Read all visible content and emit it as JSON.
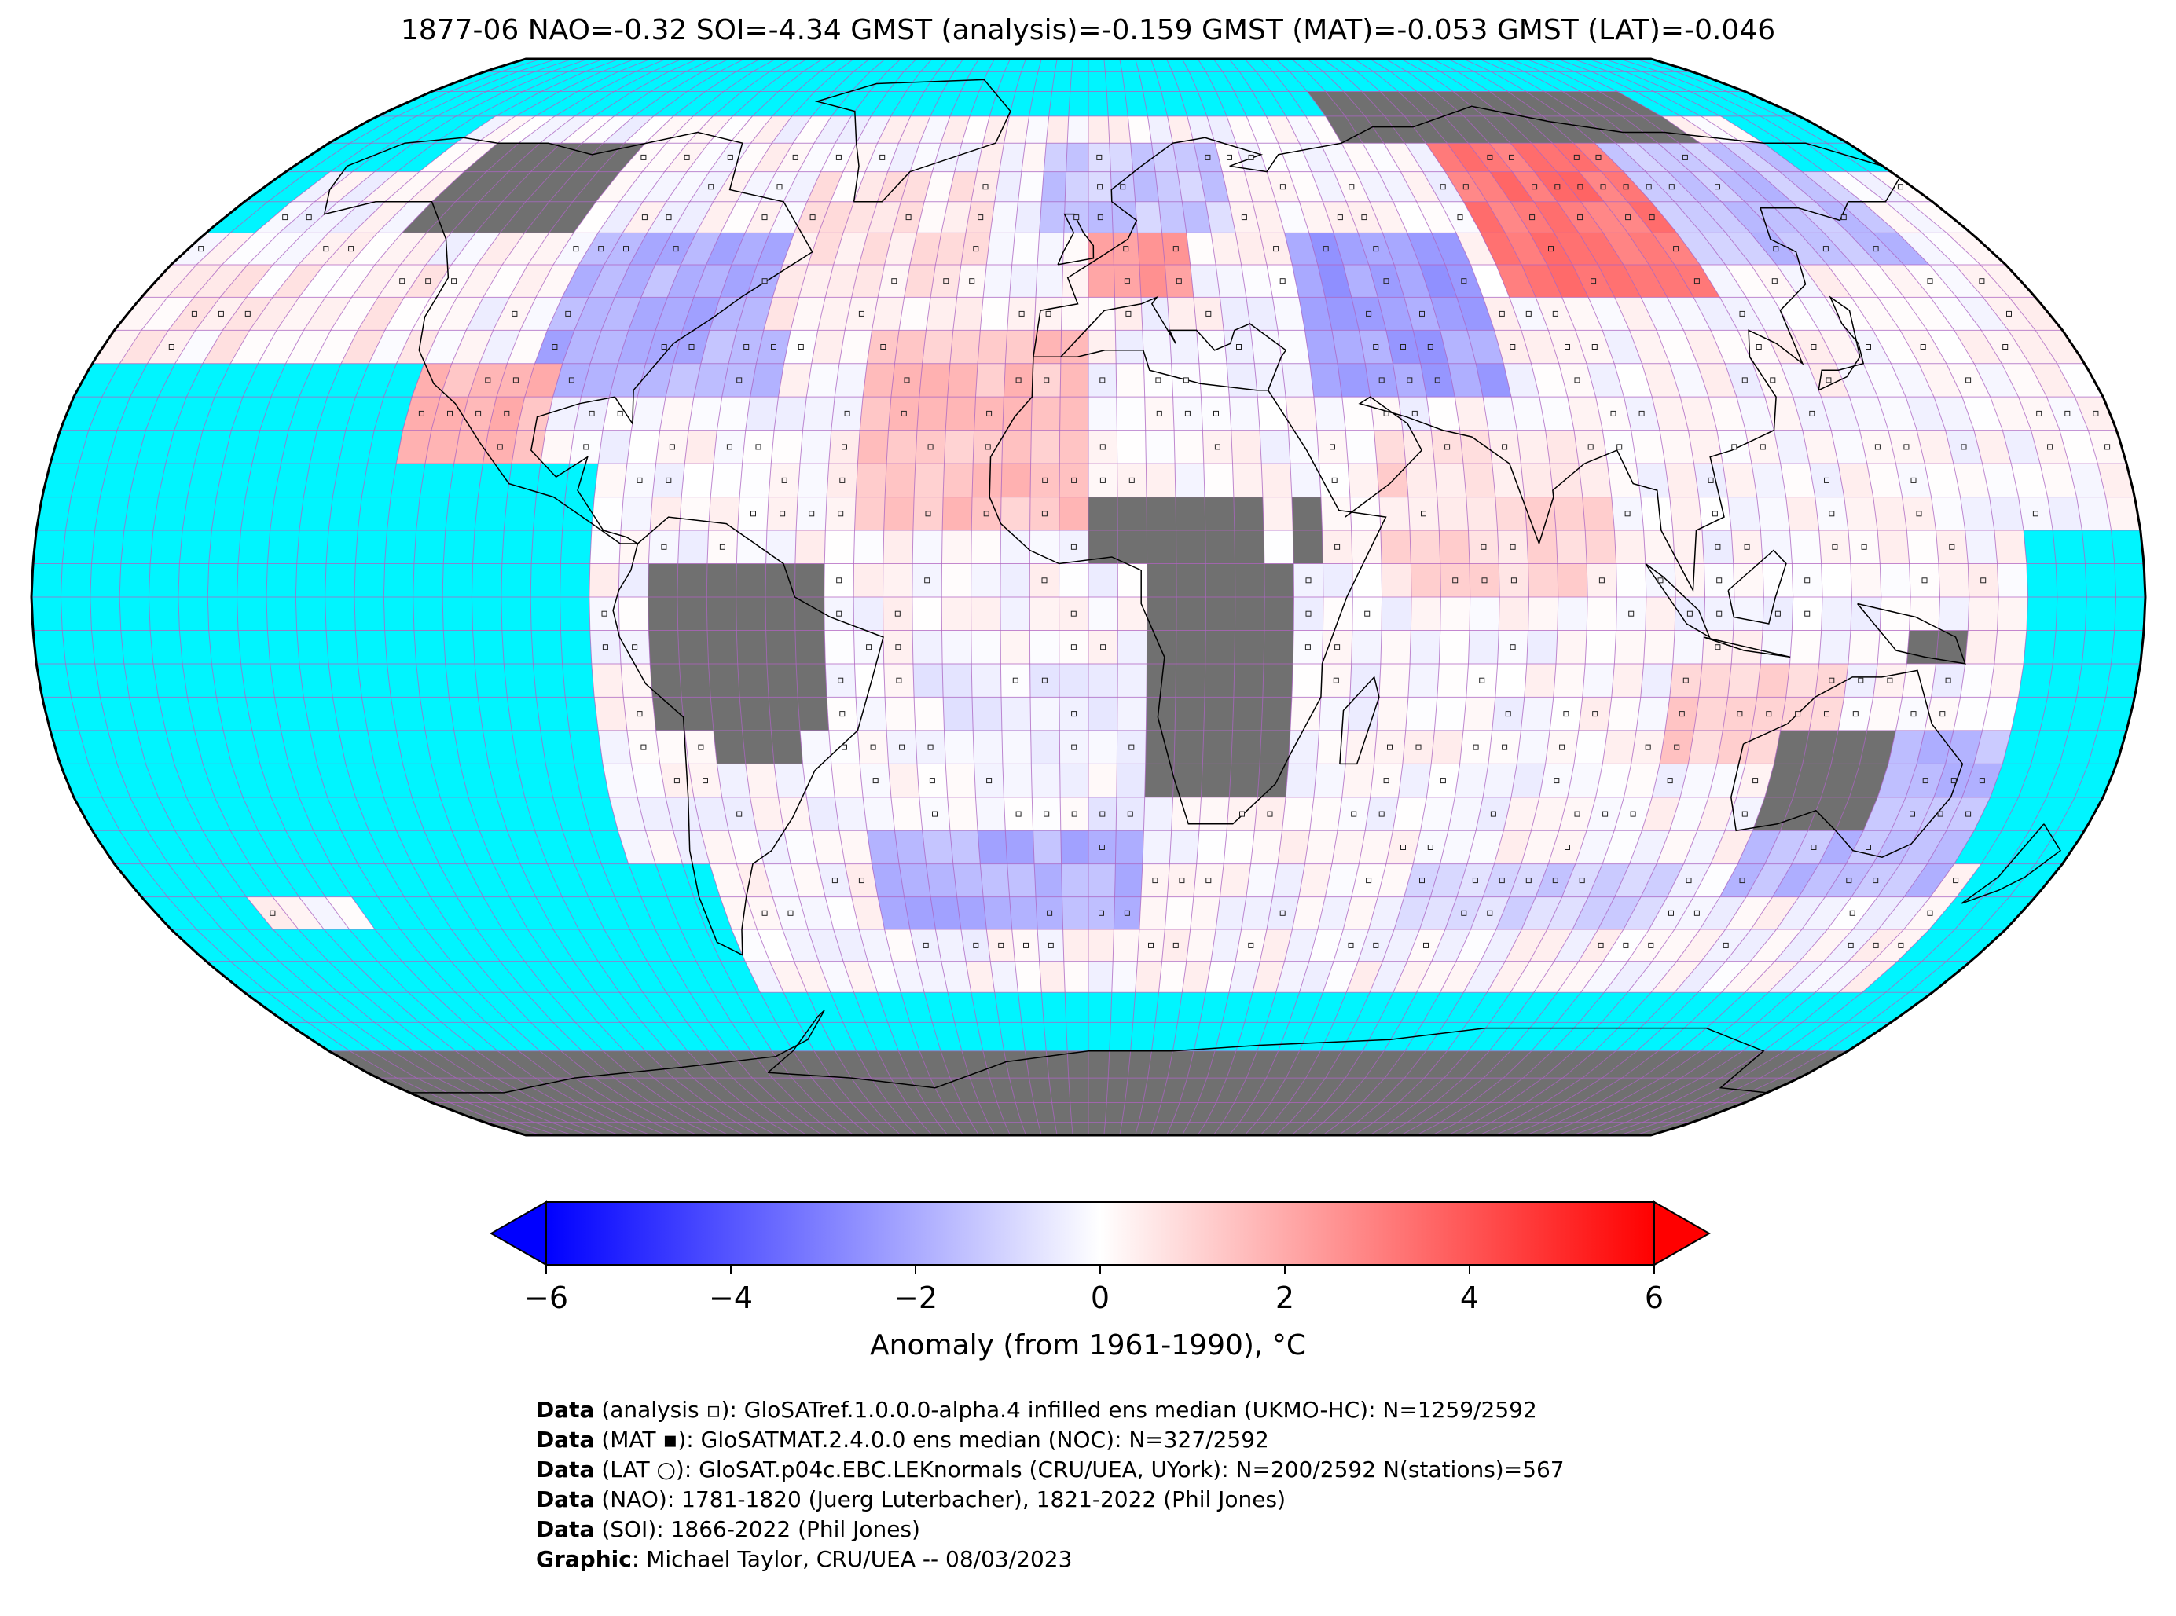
{
  "title": "1877-06 NAO=-0.32 SOI=-4.34 GMST (analysis)=-0.159 GMST (MAT)=-0.053 GMST (LAT)=-0.046",
  "map": {
    "projection": "robinson",
    "grid_resolution_deg": 5,
    "ocean_missing_color": "#00f5ff",
    "land_missing_color": "#707070",
    "grid_line_color": "#b062c0",
    "coast_color": "#000000"
  },
  "colorbar": {
    "min": -6,
    "max": 6,
    "ticks": [
      "−6",
      "−4",
      "−2",
      "0",
      "2",
      "4",
      "6"
    ],
    "tick_values": [
      -6,
      -4,
      -2,
      0,
      2,
      4,
      6
    ],
    "colormap": [
      "#0000ff",
      "#ffffff",
      "#ff0000"
    ],
    "extend": "both",
    "label": "Anomaly (from 1961-1990), °C"
  },
  "credits": [
    {
      "bold": "Data",
      "text": " (analysis ▫): GloSATref.1.0.0.0-alpha.4 infilled ens median (UKMO-HC): N=1259/2592"
    },
    {
      "bold": "Data",
      "text": " (MAT ▪): GloSATMAT.2.4.0.0 ens median (NOC): N=327/2592"
    },
    {
      "bold": "Data",
      "text": " (LAT ○): GloSAT.p04c.EBC.LEKnormals (CRU/UEA, UYork): N=200/2592 N(stations)=567"
    },
    {
      "bold": "Data",
      "text": " (NAO): 1781-1820 (Juerg Luterbacher), 1821-2022 (Phil Jones)"
    },
    {
      "bold": "Data",
      "text": " (SOI): 1866-2022 (Phil Jones)"
    },
    {
      "bold": "Graphic",
      "text": ": Michael Taylor, CRU/UEA -- 08/03/2023"
    }
  ],
  "anomaly_regions": [
    {
      "lon": [
        -100,
        -55
      ],
      "lat": [
        30,
        55
      ],
      "value": -1.8
    },
    {
      "lon": [
        -60,
        -20
      ],
      "lat": [
        40,
        65
      ],
      "value": 0.5
    },
    {
      "lon": [
        -40,
        0
      ],
      "lat": [
        10,
        40
      ],
      "value": 1.4
    },
    {
      "lon": [
        0,
        20
      ],
      "lat": [
        45,
        55
      ],
      "value": 2.5
    },
    {
      "lon": [
        -10,
        30
      ],
      "lat": [
        55,
        72
      ],
      "value": -1.2
    },
    {
      "lon": [
        40,
        75
      ],
      "lat": [
        30,
        55
      ],
      "value": -2.2
    },
    {
      "lon": [
        80,
        120
      ],
      "lat": [
        45,
        70
      ],
      "value": 3.2
    },
    {
      "lon": [
        120,
        165
      ],
      "lat": [
        50,
        70
      ],
      "value": -1.4
    },
    {
      "lon": [
        -120,
        -95
      ],
      "lat": [
        10,
        35
      ],
      "value": 1.6
    },
    {
      "lon": [
        -40,
        10
      ],
      "lat": [
        -50,
        -35
      ],
      "value": -1.8
    },
    {
      "lon": [
        60,
        110
      ],
      "lat": [
        -50,
        -40
      ],
      "value": -1.0
    },
    {
      "lon": [
        100,
        130
      ],
      "lat": [
        -25,
        -10
      ],
      "value": 1.2
    },
    {
      "lon": [
        120,
        160
      ],
      "lat": [
        -45,
        -20
      ],
      "value": -1.5
    },
    {
      "lon": [
        50,
        90
      ],
      "lat": [
        0,
        25
      ],
      "value": 0.8
    },
    {
      "lon": [
        -180,
        -120
      ],
      "lat": [
        20,
        50
      ],
      "value": 0.3
    },
    {
      "lon": [
        -30,
        10
      ],
      "lat": [
        -35,
        -10
      ],
      "value": -0.3
    }
  ]
}
